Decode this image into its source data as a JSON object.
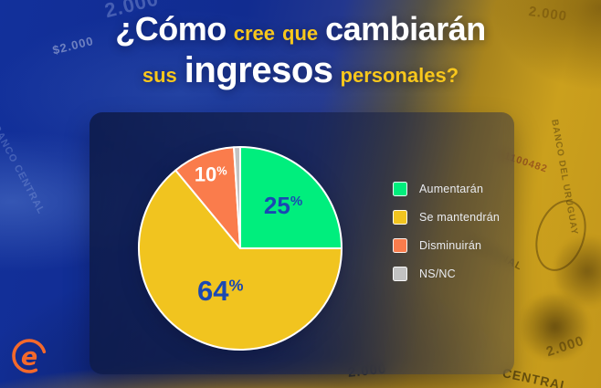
{
  "title": {
    "full_text": "¿Cómo cree que cambiarán sus ingresos personales?",
    "line1": [
      {
        "text": "¿Cómo",
        "emphasis": "big"
      },
      {
        "text": "cree",
        "emphasis": "small"
      },
      {
        "text": "que",
        "emphasis": "small"
      },
      {
        "text": "cambiarán",
        "emphasis": "big"
      }
    ],
    "line2": [
      {
        "text": "sus",
        "emphasis": "small"
      },
      {
        "text": "ingresos",
        "emphasis": "big"
      },
      {
        "text": "personales?",
        "emphasis": "small"
      }
    ]
  },
  "chart_data": {
    "type": "pie",
    "question": "¿Cómo cree que cambiarán sus ingresos personales?",
    "unit": "%",
    "direction": "clockwise",
    "start_angle": "12-oclock",
    "legend_position": "right",
    "slices": [
      {
        "label": "Aumentarán",
        "value": 25,
        "color": "#00EE7D",
        "label_color": "#1A48B3",
        "show_value": true
      },
      {
        "label": "Se mantendrán",
        "value": 64,
        "color": "#F1C41F",
        "label_color": "#1A48B3",
        "show_value": true
      },
      {
        "label": "Disminuirán",
        "value": 10,
        "color": "#FA7C4C",
        "label_color": "#FFFFFF",
        "show_value": true
      },
      {
        "label": "NS/NC",
        "value": 1,
        "color": "#C2C2C2",
        "label_color": "#FFFFFF",
        "show_value": false
      }
    ]
  },
  "branding": {
    "logo_letter": "e",
    "logo_color": "#F4692B"
  },
  "colors": {
    "accent_yellow": "#F8C71C",
    "title_white": "#FFFFFF",
    "value_blue": "#1A48B3",
    "background_blue": "#112C90",
    "background_gold": "#CBA01D"
  },
  "background": {
    "texture_labels": [
      "2.000",
      "$2.000",
      "BANCO CENTRAL",
      "NACIONAL",
      "11100482",
      "BANCO DEL URUGUAY",
      "CENTRAL",
      "2.000",
      "2.000",
      "2.000"
    ]
  }
}
